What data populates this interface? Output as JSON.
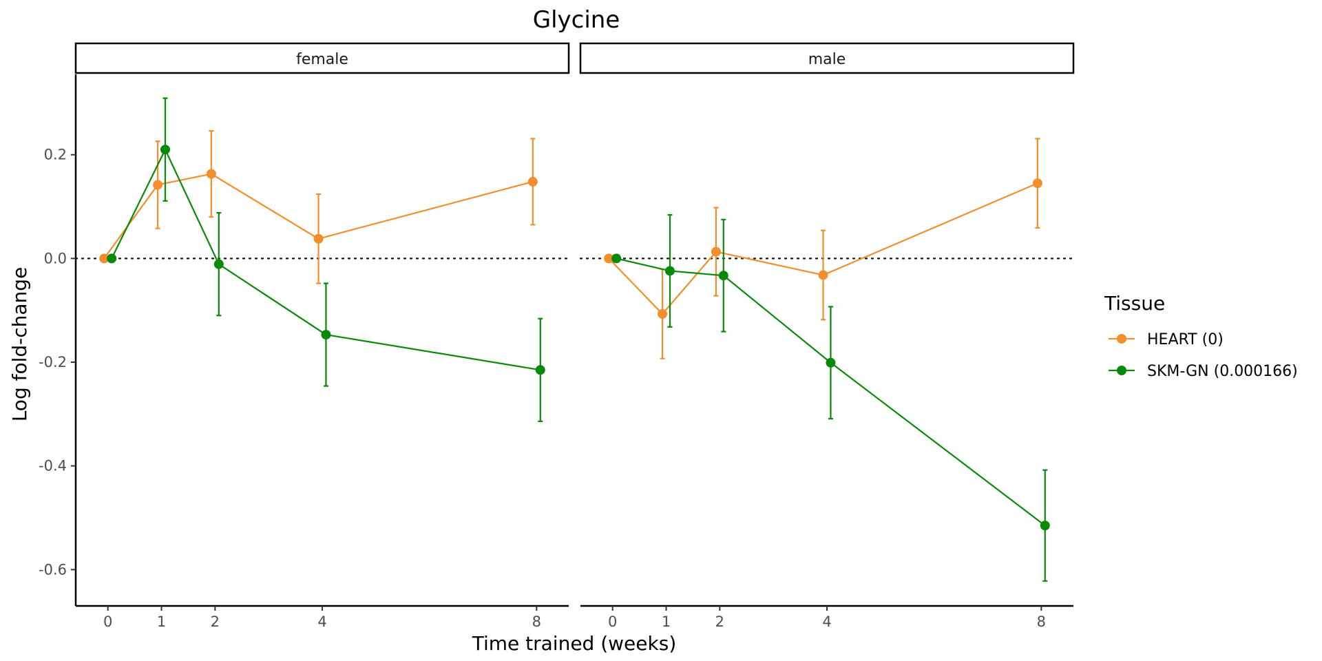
{
  "chart_data": {
    "type": "line",
    "title": "Glycine",
    "xlabel": "Time trained (weeks)",
    "ylabel": "Log fold-change",
    "x_ticks": [
      0,
      1,
      2,
      4,
      8
    ],
    "y_ticks": [
      -0.6,
      -0.4,
      -0.2,
      0.0,
      0.2
    ],
    "y_tick_labels": [
      "-0.6",
      "-0.4",
      "-0.2",
      "0.0",
      "0.2"
    ],
    "xlim": [
      -0.6,
      8.6
    ],
    "ylim": [
      -0.67,
      0.355
    ],
    "reference_line_y": 0,
    "grid": false,
    "legend": {
      "title": "Tissue",
      "placement": "right",
      "entries": [
        "HEART (0)",
        "SKM-GN (0.000166)"
      ]
    },
    "panels": [
      {
        "label": "female",
        "series": [
          {
            "name": "HEART (0)",
            "color": "#F28E2B",
            "x": [
              0,
              1,
              2,
              4,
              8
            ],
            "y": [
              0.0,
              0.142,
              0.163,
              0.038,
              0.148
            ],
            "err": [
              0.0,
              0.084,
              0.083,
              0.086,
              0.083
            ]
          },
          {
            "name": "SKM-GN (0.000166)",
            "color": "#088A08",
            "x": [
              0,
              1,
              2,
              4,
              8
            ],
            "y": [
              0.0,
              0.21,
              -0.011,
              -0.147,
              -0.215
            ],
            "err": [
              0.0,
              0.099,
              0.099,
              0.099,
              0.099
            ]
          }
        ]
      },
      {
        "label": "male",
        "series": [
          {
            "name": "HEART (0)",
            "color": "#F28E2B",
            "x": [
              0,
              1,
              2,
              4,
              8
            ],
            "y": [
              0.0,
              -0.107,
              0.013,
              -0.032,
              0.145
            ],
            "err": [
              0.0,
              0.086,
              0.085,
              0.086,
              0.086
            ]
          },
          {
            "name": "SKM-GN (0.000166)",
            "color": "#088A08",
            "x": [
              0,
              1,
              2,
              4,
              8
            ],
            "y": [
              0.0,
              -0.024,
              -0.033,
              -0.201,
              -0.515
            ],
            "err": [
              0.0,
              0.108,
              0.108,
              0.108,
              0.107
            ]
          }
        ]
      }
    ]
  }
}
